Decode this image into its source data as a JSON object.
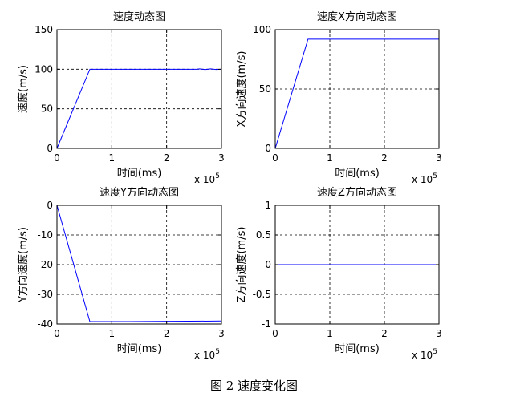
{
  "figure_caption": "图 2 速度变化图",
  "chart_data": [
    {
      "type": "line",
      "title": "速度动态图",
      "xlabel": "时间(ms)",
      "ylabel": "速度(m/s)",
      "x_multiplier": "x 10^5",
      "xlim": [
        0,
        3
      ],
      "ylim": [
        0,
        150
      ],
      "xticks": [
        0,
        1,
        2,
        3
      ],
      "yticks": [
        0,
        50,
        100,
        150
      ],
      "grid": true,
      "line_color": "#0000ff",
      "series": [
        {
          "x": [
            0,
            0.6,
            2.55,
            2.6,
            2.7,
            2.8,
            2.9,
            3.0
          ],
          "y": [
            0,
            100,
            100,
            100.5,
            99.6,
            100.4,
            99.7,
            100
          ]
        }
      ]
    },
    {
      "type": "line",
      "title": "速度X方向动态图",
      "xlabel": "时间(ms)",
      "ylabel": "X方向速度(m/s)",
      "x_multiplier": "x 10^5",
      "xlim": [
        0,
        3
      ],
      "ylim": [
        0,
        100
      ],
      "xticks": [
        0,
        1,
        2,
        3
      ],
      "yticks": [
        0,
        50,
        100
      ],
      "grid": true,
      "line_color": "#0000ff",
      "series": [
        {
          "x": [
            0,
            0.6,
            3.0
          ],
          "y": [
            0,
            92,
            92
          ]
        }
      ]
    },
    {
      "type": "line",
      "title": "速度Y方向动态图",
      "xlabel": "时间(ms)",
      "ylabel": "Y方向速度(m/s)",
      "x_multiplier": "x 10^5",
      "xlim": [
        0,
        3
      ],
      "ylim": [
        -40,
        0
      ],
      "xticks": [
        0,
        1,
        2,
        3
      ],
      "yticks": [
        0,
        -10,
        -20,
        -30,
        -40
      ],
      "grid": true,
      "line_color": "#0000ff",
      "series": [
        {
          "x": [
            0,
            0.6,
            1.3,
            3.0
          ],
          "y": [
            0,
            -39.2,
            -39.2,
            -39.0
          ]
        }
      ]
    },
    {
      "type": "line",
      "title": "速度Z方向动态图",
      "xlabel": "时间(ms)",
      "ylabel": "Z方向速度(m/s)",
      "x_multiplier": "x 10^5",
      "xlim": [
        0,
        3
      ],
      "ylim": [
        -1,
        1
      ],
      "xticks": [
        0,
        1,
        2,
        3
      ],
      "yticks": [
        1,
        0.5,
        0,
        -0.5,
        -1
      ],
      "grid": true,
      "line_color": "#0000ff",
      "series": [
        {
          "x": [
            0,
            3.0
          ],
          "y": [
            0,
            0
          ]
        }
      ]
    }
  ]
}
